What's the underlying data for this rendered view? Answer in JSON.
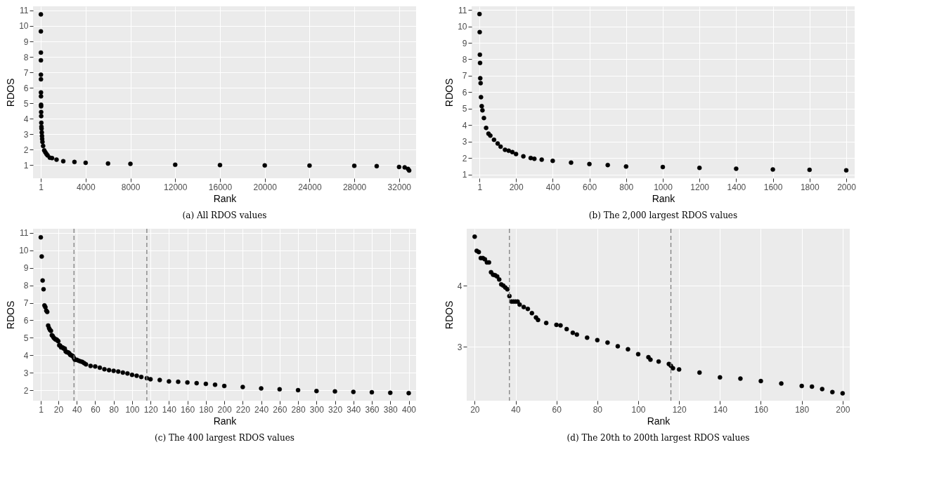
{
  "chart_data": [
    {
      "type": "scatter",
      "title": "(a)  All RDOS values",
      "xlabel": "Rank",
      "ylabel": "RDOS",
      "grid": true,
      "marker": "circle",
      "xlim": [
        -700,
        33520
      ],
      "ylim": [
        0.15,
        11.27
      ],
      "xticks": [
        1,
        4000,
        8000,
        12000,
        16000,
        20000,
        24000,
        28000,
        32000
      ],
      "yticks": [
        1,
        2,
        3,
        4,
        5,
        6,
        7,
        8,
        9,
        10,
        11
      ],
      "x": [
        1,
        2,
        3,
        4,
        5,
        7,
        9,
        11,
        17,
        20,
        25,
        30,
        40,
        50,
        60,
        80,
        100,
        116,
        140,
        200,
        300,
        400,
        500,
        600,
        800,
        1000,
        1400,
        2000,
        3000,
        4000,
        6000,
        8000,
        12000,
        16000,
        20000,
        24000,
        28000,
        30000,
        32000,
        32500,
        32800,
        32900
      ],
      "series": [
        {
          "color": "#000000",
          "values": [
            10.75,
            9.65,
            8.28,
            7.78,
            6.85,
            6.55,
            5.7,
            5.45,
            4.9,
            4.8,
            4.43,
            4.17,
            3.74,
            3.48,
            3.36,
            3.11,
            2.88,
            2.69,
            2.5,
            2.24,
            1.95,
            1.83,
            1.72,
            1.63,
            1.48,
            1.45,
            1.35,
            1.25,
            1.2,
            1.15,
            1.1,
            1.08,
            1.02,
            1.0,
            0.98,
            0.97,
            0.95,
            0.93,
            0.88,
            0.85,
            0.75,
            0.65
          ]
        }
      ]
    },
    {
      "type": "scatter",
      "title": "(b)  The 2,000 largest RDOS values",
      "xlabel": "Rank",
      "ylabel": "RDOS",
      "grid": true,
      "marker": "circle",
      "xlim": [
        -42,
        2046
      ],
      "ylim": [
        0.77,
        11.22
      ],
      "xticks": [
        1,
        200,
        400,
        600,
        800,
        1000,
        1200,
        1400,
        1600,
        1800,
        2000
      ],
      "yticks": [
        1,
        2,
        3,
        4,
        5,
        6,
        7,
        8,
        9,
        10,
        11
      ],
      "x": [
        1,
        2,
        3,
        4,
        5,
        7,
        9,
        13,
        17,
        25,
        37,
        50,
        60,
        80,
        100,
        116,
        140,
        160,
        180,
        200,
        240,
        280,
        300,
        340,
        400,
        500,
        600,
        700,
        800,
        1000,
        1200,
        1400,
        1600,
        1800,
        2000
      ],
      "series": [
        {
          "color": "#000000",
          "values": [
            10.75,
            9.65,
            8.28,
            7.78,
            6.85,
            6.55,
            5.7,
            5.15,
            4.9,
            4.43,
            3.83,
            3.48,
            3.36,
            3.11,
            2.88,
            2.69,
            2.5,
            2.44,
            2.36,
            2.24,
            2.1,
            2.0,
            1.95,
            1.9,
            1.83,
            1.72,
            1.63,
            1.57,
            1.48,
            1.45,
            1.4,
            1.35,
            1.3,
            1.28,
            1.25
          ]
        }
      ]
    },
    {
      "type": "scatter",
      "title": "(c)  The 400 largest RDOS values",
      "xlabel": "Rank",
      "ylabel": "RDOS",
      "grid": true,
      "marker": "circle",
      "xlim": [
        -7.4,
        408
      ],
      "ylim": [
        1.4,
        11.24
      ],
      "xticks": [
        1,
        20,
        40,
        60,
        80,
        100,
        120,
        140,
        160,
        180,
        200,
        220,
        240,
        260,
        280,
        300,
        320,
        340,
        360,
        380,
        400
      ],
      "yticks": [
        2,
        3,
        4,
        5,
        6,
        7,
        8,
        9,
        10,
        11
      ],
      "ref_lines": [
        {
          "axis": "x",
          "value": 37,
          "color": "#7f7f7f",
          "line_style": "dashed"
        },
        {
          "axis": "x",
          "value": 116,
          "color": "#7f7f7f",
          "line_style": "dashed"
        }
      ],
      "x": [
        1,
        2,
        3,
        4,
        5,
        6,
        7,
        8,
        9,
        10,
        11,
        12,
        13,
        14,
        15,
        16,
        17,
        18,
        19,
        20,
        21,
        22,
        23,
        24,
        25,
        26,
        27,
        28,
        29,
        30,
        31,
        32,
        33,
        34,
        35,
        36,
        37,
        38,
        40,
        42,
        44,
        46,
        48,
        50,
        55,
        60,
        65,
        70,
        75,
        80,
        85,
        90,
        95,
        100,
        105,
        110,
        116,
        120,
        130,
        140,
        150,
        160,
        170,
        180,
        190,
        200,
        220,
        240,
        260,
        280,
        300,
        320,
        340,
        360,
        380,
        400
      ],
      "series": [
        {
          "color": "#000000",
          "values": [
            10.75,
            9.65,
            8.28,
            7.78,
            6.85,
            6.75,
            6.55,
            6.48,
            5.7,
            5.55,
            5.45,
            5.4,
            5.15,
            5.1,
            5.0,
            4.95,
            4.9,
            4.9,
            4.85,
            4.8,
            4.57,
            4.55,
            4.45,
            4.45,
            4.43,
            4.38,
            4.38,
            4.22,
            4.18,
            4.17,
            4.15,
            4.1,
            4.02,
            4.0,
            3.97,
            3.94,
            3.83,
            3.74,
            3.74,
            3.69,
            3.65,
            3.62,
            3.55,
            3.48,
            3.39,
            3.36,
            3.29,
            3.2,
            3.15,
            3.11,
            3.07,
            3.01,
            2.96,
            2.88,
            2.83,
            2.76,
            2.69,
            2.63,
            2.58,
            2.5,
            2.48,
            2.44,
            2.4,
            2.36,
            2.31,
            2.24,
            2.18,
            2.1,
            2.05,
            2.0,
            1.95,
            1.93,
            1.9,
            1.88,
            1.85,
            1.83
          ]
        }
      ]
    },
    {
      "type": "scatter",
      "title": "(d)  The 20th to 200th largest RDOS values",
      "xlabel": "Rank",
      "ylabel": "RDOS",
      "grid": true,
      "marker": "circle",
      "xlim": [
        16.1,
        203.5
      ],
      "ylim": [
        2.12,
        4.93
      ],
      "xticks": [
        20,
        40,
        60,
        80,
        100,
        120,
        140,
        160,
        180,
        200
      ],
      "yticks": [
        3,
        4
      ],
      "ref_lines": [
        {
          "axis": "x",
          "value": 37,
          "color": "#7f7f7f",
          "line_style": "dashed"
        },
        {
          "axis": "x",
          "value": 116,
          "color": "#7f7f7f",
          "line_style": "dashed"
        }
      ],
      "x": [
        20,
        21,
        22,
        23,
        24,
        25,
        26,
        27,
        28,
        29,
        30,
        31,
        32,
        33,
        34,
        35,
        36,
        37,
        38,
        39,
        40,
        41,
        42,
        44,
        46,
        48,
        50,
        51,
        55,
        60,
        62,
        65,
        68,
        70,
        75,
        80,
        85,
        90,
        95,
        100,
        105,
        106,
        110,
        115,
        116,
        117,
        120,
        130,
        140,
        150,
        160,
        170,
        180,
        185,
        190,
        195,
        200
      ],
      "series": [
        {
          "color": "#000000",
          "values": [
            4.8,
            4.57,
            4.55,
            4.45,
            4.45,
            4.43,
            4.38,
            4.38,
            4.22,
            4.18,
            4.17,
            4.15,
            4.1,
            4.02,
            4.0,
            3.97,
            3.94,
            3.83,
            3.74,
            3.74,
            3.74,
            3.74,
            3.69,
            3.65,
            3.62,
            3.55,
            3.48,
            3.44,
            3.39,
            3.36,
            3.35,
            3.29,
            3.23,
            3.2,
            3.15,
            3.11,
            3.07,
            3.01,
            2.96,
            2.88,
            2.83,
            2.79,
            2.76,
            2.72,
            2.69,
            2.65,
            2.63,
            2.58,
            2.5,
            2.48,
            2.44,
            2.4,
            2.36,
            2.35,
            2.31,
            2.26,
            2.24
          ]
        }
      ]
    }
  ]
}
